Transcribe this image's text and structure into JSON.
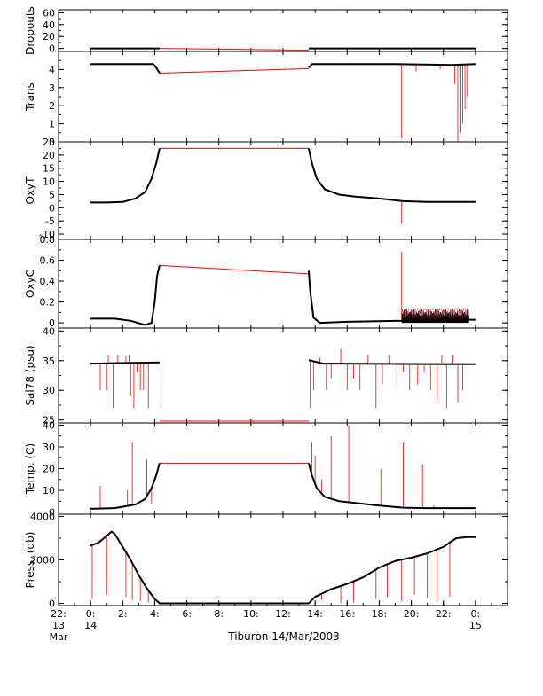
{
  "chart_data": {
    "type": "line",
    "title": "",
    "xlabel": "Tiburon 14/Mar/2003",
    "x_unit": "hours since 00:00 on 14 Mar 2003",
    "x_range": [
      -2,
      26
    ],
    "x_ticks": [
      {
        "hour": -2,
        "lines": [
          "22:",
          "13",
          "Mar"
        ]
      },
      {
        "hour": 0,
        "lines": [
          "0:",
          "14"
        ]
      },
      {
        "hour": 2,
        "lines": [
          "2:"
        ]
      },
      {
        "hour": 4,
        "lines": [
          "4:"
        ]
      },
      {
        "hour": 6,
        "lines": [
          "6:"
        ]
      },
      {
        "hour": 8,
        "lines": [
          "8:"
        ]
      },
      {
        "hour": 10,
        "lines": [
          "10:"
        ]
      },
      {
        "hour": 12,
        "lines": [
          "12:"
        ]
      },
      {
        "hour": 14,
        "lines": [
          "14:"
        ]
      },
      {
        "hour": 16,
        "lines": [
          "16:"
        ]
      },
      {
        "hour": 18,
        "lines": [
          "18:"
        ]
      },
      {
        "hour": 20,
        "lines": [
          "20:"
        ]
      },
      {
        "hour": 22,
        "lines": [
          "22:"
        ]
      },
      {
        "hour": 24,
        "lines": [
          "0:",
          "15"
        ]
      }
    ],
    "series_colors": {
      "measured": "#000000",
      "flagged": "#ff0000"
    },
    "panels": [
      {
        "id": "dropouts",
        "ylabel": "Dropouts",
        "ylim": [
          -5,
          65
        ],
        "yticks": [
          0,
          20,
          40,
          60
        ],
        "minor_step": 10,
        "measured": [
          [
            0,
            0
          ],
          [
            4.3,
            0
          ],
          [
            13.6,
            0
          ],
          [
            24,
            0
          ]
        ],
        "measured_segments": [
          [
            0,
            4.3
          ],
          [
            13.6,
            24
          ]
        ],
        "gap_line": [
          [
            4.3,
            0
          ],
          [
            13.6,
            -3
          ]
        ],
        "spikes": []
      },
      {
        "id": "trans",
        "ylabel": "Trans",
        "ylim": [
          0,
          5
        ],
        "yticks": [
          0,
          1,
          2,
          3,
          4
        ],
        "minor_step": 0.5,
        "measured": [
          [
            0,
            4.3
          ],
          [
            3.9,
            4.3
          ],
          [
            4.1,
            4.1
          ],
          [
            4.3,
            3.8
          ],
          [
            13.6,
            4.1
          ],
          [
            13.8,
            4.3
          ],
          [
            19,
            4.3
          ],
          [
            22.5,
            4.25
          ],
          [
            24,
            4.3
          ]
        ],
        "measured_segments": [
          [
            0,
            4.3
          ],
          [
            13.6,
            24
          ]
        ],
        "gap_line": [
          [
            4.3,
            3.8
          ],
          [
            13.6,
            4.05
          ]
        ],
        "spikes": [
          [
            19.4,
            0.2
          ],
          [
            22.9,
            0.0
          ],
          [
            23.1,
            0.5
          ],
          [
            23.2,
            1.0
          ],
          [
            23.35,
            1.8
          ],
          [
            23.5,
            2.5
          ],
          [
            22.7,
            3.2
          ],
          [
            21.8,
            4.0
          ],
          [
            20.3,
            3.9
          ]
        ]
      },
      {
        "id": "oxyt",
        "ylabel": "OxyT",
        "ylim": [
          -12,
          25
        ],
        "yticks": [
          -10,
          -5,
          0,
          5,
          10,
          15,
          20,
          25
        ],
        "minor_step": 2.5,
        "measured": [
          [
            0,
            2
          ],
          [
            1,
            2
          ],
          [
            2,
            2.2
          ],
          [
            2.8,
            3.5
          ],
          [
            3.4,
            6
          ],
          [
            3.8,
            11
          ],
          [
            4.1,
            17
          ],
          [
            4.3,
            22.5
          ],
          [
            13.6,
            22.5
          ],
          [
            13.8,
            17
          ],
          [
            14.1,
            11
          ],
          [
            14.6,
            7
          ],
          [
            15.5,
            5
          ],
          [
            16.5,
            4.2
          ],
          [
            18,
            3.5
          ],
          [
            19.5,
            2.5
          ],
          [
            21,
            2.2
          ],
          [
            24,
            2.2
          ]
        ],
        "measured_segments": [
          [
            0,
            4.3
          ],
          [
            13.6,
            24
          ]
        ],
        "gap_line": [
          [
            4.3,
            22.5
          ],
          [
            13.6,
            22.5
          ]
        ],
        "spikes": [
          [
            19.4,
            -6
          ]
        ]
      },
      {
        "id": "oxyc",
        "ylabel": "OxyC",
        "ylim": [
          -0.05,
          0.8
        ],
        "yticks": [
          0.0,
          0.2,
          0.4,
          0.6,
          0.8
        ],
        "minor_step": 0.1,
        "measured": [
          [
            0,
            0.04
          ],
          [
            1.5,
            0.04
          ],
          [
            2.5,
            0.02
          ],
          [
            3.4,
            -0.02
          ],
          [
            3.8,
            0.0
          ],
          [
            4.0,
            0.2
          ],
          [
            4.15,
            0.45
          ],
          [
            4.3,
            0.55
          ],
          [
            13.6,
            0.5
          ],
          [
            13.7,
            0.3
          ],
          [
            13.9,
            0.05
          ],
          [
            14.3,
            0.0
          ],
          [
            16,
            0.01
          ],
          [
            19.4,
            0.02
          ],
          [
            21,
            0.03
          ],
          [
            24,
            0.03
          ]
        ],
        "measured_segments": [
          [
            0,
            4.3
          ],
          [
            13.6,
            24
          ]
        ],
        "gap_line": [
          [
            4.3,
            0.55
          ],
          [
            13.6,
            0.47
          ]
        ],
        "noise_band": {
          "from": 19.4,
          "to": 23.6,
          "low": 0.0,
          "high": 0.13
        },
        "spikes": [
          [
            19.4,
            0.68
          ]
        ]
      },
      {
        "id": "sal",
        "ylabel": "Sal78 (psu)",
        "ylim": [
          24.5,
          40.5
        ],
        "yticks": [
          25,
          30,
          35,
          40
        ],
        "minor_step": 2.5,
        "measured": [
          [
            0,
            34.5
          ],
          [
            4.3,
            34.7
          ],
          [
            13.6,
            35.1
          ],
          [
            14.5,
            34.5
          ],
          [
            24,
            34.4
          ]
        ],
        "measured_segments": [
          [
            0,
            4.3
          ],
          [
            13.6,
            24
          ]
        ],
        "gap_line": [
          [
            4.3,
            24.8
          ],
          [
            13.6,
            24.8
          ]
        ],
        "spikes": [
          [
            0.6,
            30
          ],
          [
            1.0,
            30
          ],
          [
            1.4,
            27
          ],
          [
            1.1,
            36
          ],
          [
            1.7,
            36
          ],
          [
            2.2,
            35.8
          ],
          [
            2.4,
            36
          ],
          [
            2.5,
            29
          ],
          [
            2.7,
            27
          ],
          [
            2.9,
            33
          ],
          [
            3.1,
            30
          ],
          [
            3.3,
            30
          ],
          [
            3.6,
            27
          ],
          [
            4.4,
            27
          ],
          [
            13.7,
            27
          ],
          [
            13.9,
            30
          ],
          [
            14.3,
            35.5
          ],
          [
            14.7,
            30
          ],
          [
            15.0,
            32
          ],
          [
            15.6,
            37
          ],
          [
            16.0,
            30
          ],
          [
            16.4,
            32
          ],
          [
            16.8,
            30
          ],
          [
            17.3,
            36
          ],
          [
            17.8,
            27
          ],
          [
            18.2,
            31
          ],
          [
            18.6,
            36
          ],
          [
            19.1,
            31
          ],
          [
            19.5,
            33
          ],
          [
            19.9,
            30
          ],
          [
            20.4,
            31
          ],
          [
            20.8,
            33
          ],
          [
            21.2,
            30
          ],
          [
            21.6,
            28
          ],
          [
            21.9,
            36
          ],
          [
            22.2,
            27
          ],
          [
            22.6,
            36
          ],
          [
            22.9,
            28
          ],
          [
            23.2,
            30
          ]
        ]
      },
      {
        "id": "temp",
        "ylabel": "Temp. (C)",
        "ylim": [
          -1,
          41
        ],
        "yticks": [
          0,
          10,
          20,
          30,
          40
        ],
        "minor_step": 5,
        "measured": [
          [
            0,
            1.5
          ],
          [
            1.5,
            1.8
          ],
          [
            2.8,
            3.5
          ],
          [
            3.4,
            6
          ],
          [
            3.8,
            11
          ],
          [
            4.1,
            17
          ],
          [
            4.3,
            22.5
          ],
          [
            13.6,
            22.5
          ],
          [
            13.8,
            17
          ],
          [
            14.1,
            11
          ],
          [
            14.6,
            7
          ],
          [
            15.5,
            5
          ],
          [
            16.5,
            4.2
          ],
          [
            18,
            3
          ],
          [
            19.5,
            2
          ],
          [
            21,
            1.8
          ],
          [
            24,
            1.8
          ]
        ],
        "measured_segments": [
          [
            0,
            4.3
          ],
          [
            13.6,
            24
          ]
        ],
        "gap_line": [
          [
            4.3,
            22.5
          ],
          [
            13.6,
            22.5
          ]
        ],
        "spikes": [
          [
            0.6,
            12
          ],
          [
            2.3,
            10
          ],
          [
            2.6,
            32
          ],
          [
            3.5,
            24
          ],
          [
            3.8,
            4
          ],
          [
            13.8,
            32
          ],
          [
            14.0,
            26
          ],
          [
            14.4,
            15
          ],
          [
            15.0,
            35
          ],
          [
            16.1,
            40
          ],
          [
            17.3,
            4
          ],
          [
            18.1,
            20
          ],
          [
            19.5,
            32
          ],
          [
            20.7,
            22
          ],
          [
            21.4,
            3
          ],
          [
            22.3,
            2
          ]
        ]
      },
      {
        "id": "press",
        "ylabel": "Press. (db)",
        "ylim": [
          -100,
          4100
        ],
        "yticks": [
          0,
          2000,
          4000
        ],
        "minor_step": 1000,
        "measured": [
          [
            0,
            2650
          ],
          [
            0.5,
            2800
          ],
          [
            1.0,
            3100
          ],
          [
            1.3,
            3300
          ],
          [
            1.5,
            3200
          ],
          [
            2.0,
            2600
          ],
          [
            2.5,
            2000
          ],
          [
            3.0,
            1300
          ],
          [
            3.5,
            700
          ],
          [
            4.0,
            200
          ],
          [
            4.3,
            0
          ],
          [
            13.6,
            0
          ],
          [
            14.0,
            300
          ],
          [
            15.0,
            650
          ],
          [
            16.0,
            900
          ],
          [
            17.0,
            1200
          ],
          [
            18.0,
            1650
          ],
          [
            19.0,
            1950
          ],
          [
            20.0,
            2100
          ],
          [
            21.0,
            2300
          ],
          [
            22.0,
            2600
          ],
          [
            22.8,
            3000
          ],
          [
            23.5,
            3050
          ],
          [
            24.0,
            3050
          ]
        ],
        "measured_segments": [
          [
            0,
            24
          ]
        ],
        "gap_line": [],
        "spikes": [
          [
            0.1,
            200
          ],
          [
            1.0,
            400
          ],
          [
            2.2,
            300
          ],
          [
            2.6,
            150
          ],
          [
            3.1,
            100
          ],
          [
            3.6,
            50
          ],
          [
            14.4,
            150
          ],
          [
            15.6,
            0
          ],
          [
            16.4,
            50
          ],
          [
            17.8,
            200
          ],
          [
            18.5,
            300
          ],
          [
            19.4,
            100
          ],
          [
            20.2,
            400
          ],
          [
            21.0,
            250
          ],
          [
            21.6,
            100
          ],
          [
            22.4,
            300
          ]
        ]
      }
    ]
  }
}
